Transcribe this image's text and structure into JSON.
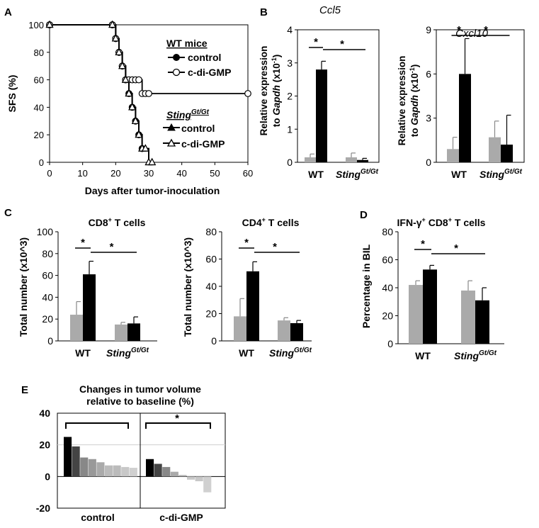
{
  "panels": {
    "a": "A",
    "b": "B",
    "c": "C",
    "d": "D",
    "e": "E"
  },
  "chart_data": [
    {
      "id": "A",
      "type": "line",
      "xlabel": "Days after tumor-inoculation",
      "ylabel": "SFS (%)",
      "xlim": [
        0,
        60
      ],
      "ylim": [
        0,
        100
      ],
      "xticks": [
        "0",
        "10",
        "20",
        "30",
        "40",
        "50",
        "60"
      ],
      "yticks": [
        "0",
        "20",
        "40",
        "60",
        "80",
        "100"
      ],
      "legend": {
        "group1_title": "WT mice",
        "group2_title_main": "Sting",
        "group2_title_sup": "Gt/Gt",
        "control": "control",
        "treated": "c-di-GMP"
      },
      "series": [
        {
          "name": "control",
          "group": "WT mice",
          "marker": "circle-filled",
          "x": [
            0,
            19,
            20,
            21,
            22,
            23,
            24,
            25,
            26,
            27,
            28
          ],
          "y": [
            100,
            100,
            90,
            80,
            70,
            60,
            50,
            40,
            30,
            20,
            10
          ]
        },
        {
          "name": "c-di-GMP",
          "group": "WT mice",
          "marker": "circle-open",
          "x": [
            0,
            19,
            20,
            21,
            22,
            23,
            24,
            25,
            26,
            27,
            28,
            29,
            30,
            60
          ],
          "y": [
            100,
            100,
            90,
            80,
            70,
            60,
            60,
            60,
            60,
            60,
            50,
            50,
            50,
            50
          ]
        },
        {
          "name": "control",
          "group": "Sting Gt/Gt",
          "marker": "triangle-filled",
          "x": [
            0,
            19,
            20,
            21,
            22,
            23,
            24,
            25,
            26,
            27,
            28,
            29,
            30,
            31
          ],
          "y": [
            100,
            100,
            90,
            80,
            70,
            60,
            50,
            40,
            30,
            20,
            10,
            10,
            0,
            0
          ]
        },
        {
          "name": "c-di-GMP",
          "group": "Sting Gt/Gt",
          "marker": "triangle-open",
          "x": [
            0,
            19,
            20,
            21,
            22,
            23,
            24,
            25,
            26,
            27,
            28,
            29,
            30,
            31
          ],
          "y": [
            100,
            100,
            90,
            80,
            70,
            60,
            50,
            40,
            30,
            20,
            10,
            10,
            0,
            0
          ]
        }
      ]
    },
    {
      "id": "B1",
      "type": "bar",
      "title": "Ccl5",
      "ylabel_main": "Relative expression",
      "ylabel_to": "to ",
      "ylabel_gene": "Gapdh",
      "ylabel_unit": " (x10",
      "ylabel_exp": "-1",
      "ylabel_close": ")",
      "ylim": [
        0,
        4
      ],
      "yticks": [
        "0",
        "1",
        "2",
        "3",
        "4"
      ],
      "categories": [
        {
          "main": "WT",
          "sup": ""
        },
        {
          "main": "Sting",
          "sup": "Gt/Gt"
        }
      ],
      "series": [
        {
          "name": "control",
          "color": "#aaaaaa",
          "values": [
            0.15,
            0.15
          ],
          "errors": [
            0.1,
            0.13
          ]
        },
        {
          "name": "c-di-GMP",
          "color": "#000000",
          "values": [
            2.8,
            0.07
          ],
          "errors": [
            0.25,
            0.05
          ]
        }
      ],
      "sig_marker": "*"
    },
    {
      "id": "B2",
      "type": "bar",
      "title": "Cxcl10",
      "ylabel_main": "Relative expression",
      "ylabel_to": "to ",
      "ylabel_gene": "Gapdh",
      "ylabel_unit": " (x10",
      "ylabel_exp": "-1",
      "ylabel_close": ")",
      "ylim": [
        0,
        9
      ],
      "yticks": [
        "0",
        "3",
        "6",
        "9"
      ],
      "categories": [
        {
          "main": "WT",
          "sup": ""
        },
        {
          "main": "Sting",
          "sup": "Gt/Gt"
        }
      ],
      "series": [
        {
          "name": "control",
          "color": "#aaaaaa",
          "values": [
            0.9,
            1.7
          ],
          "errors": [
            0.8,
            1.1
          ]
        },
        {
          "name": "c-di-GMP",
          "color": "#000000",
          "values": [
            6.0,
            1.2
          ],
          "errors": [
            2.4,
            2.0
          ]
        }
      ],
      "sig_marker": "*"
    },
    {
      "id": "C1",
      "type": "bar",
      "title_main": "CD8",
      "title_sup": "+",
      "title_rest": " T cells",
      "ylabel": "Total number (x10^3)",
      "ylim": [
        0,
        100
      ],
      "yticks": [
        "0",
        "20",
        "40",
        "60",
        "80",
        "100"
      ],
      "categories": [
        {
          "main": "WT",
          "sup": ""
        },
        {
          "main": "Sting",
          "sup": "Gt/Gt"
        }
      ],
      "series": [
        {
          "name": "control",
          "color": "#aaaaaa",
          "values": [
            24,
            15
          ],
          "errors": [
            12,
            2
          ]
        },
        {
          "name": "c-di-GMP",
          "color": "#000000",
          "values": [
            61,
            16
          ],
          "errors": [
            12,
            6
          ]
        }
      ],
      "sig_marker": "*"
    },
    {
      "id": "C2",
      "type": "bar",
      "title_main": "CD4",
      "title_sup": "+",
      "title_rest": " T cells",
      "ylabel": "Total number (x10^3)",
      "ylim": [
        0,
        80
      ],
      "yticks": [
        "0",
        "20",
        "40",
        "60",
        "80"
      ],
      "categories": [
        {
          "main": "WT",
          "sup": ""
        },
        {
          "main": "Sting",
          "sup": "Gt/Gt"
        }
      ],
      "series": [
        {
          "name": "control",
          "color": "#aaaaaa",
          "values": [
            18,
            15
          ],
          "errors": [
            13,
            2
          ]
        },
        {
          "name": "c-di-GMP",
          "color": "#000000",
          "values": [
            51,
            13
          ],
          "errors": [
            7,
            2
          ]
        }
      ],
      "sig_marker": "*"
    },
    {
      "id": "D",
      "type": "bar",
      "title_main": "IFN-γ",
      "title_sup": "+",
      "title_mid": " CD8",
      "title_sup2": "+",
      "title_rest": " T cells",
      "ylabel": "Percentage in BIL",
      "ylim": [
        0,
        80
      ],
      "yticks": [
        "0",
        "20",
        "40",
        "60",
        "80"
      ],
      "categories": [
        {
          "main": "WT",
          "sup": ""
        },
        {
          "main": "Sting",
          "sup": "Gt/Gt"
        }
      ],
      "series": [
        {
          "name": "control",
          "color": "#aaaaaa",
          "values": [
            42,
            38
          ],
          "errors": [
            3,
            7
          ]
        },
        {
          "name": "c-di-GMP",
          "color": "#000000",
          "values": [
            53,
            31
          ],
          "errors": [
            3,
            9
          ]
        }
      ],
      "sig_marker": "*"
    },
    {
      "id": "E",
      "type": "bar",
      "title_line1": "Changes in tumor volume",
      "title_line2": "relative to baseline (%)",
      "ylim": [
        -20,
        40
      ],
      "yticks": [
        "-20",
        "0",
        "20",
        "40"
      ],
      "groups": [
        {
          "label": "control",
          "values": [
            25,
            19,
            12,
            11,
            9,
            7,
            7,
            6,
            5.5
          ],
          "colors": [
            "#000000",
            "#444444",
            "#888888",
            "#999999",
            "#aaaaaa",
            "#bbbbbb",
            "#bbbbbb",
            "#c8c8c8",
            "#d0d0d0"
          ]
        },
        {
          "label": "c-di-GMP",
          "values": [
            11,
            8,
            6,
            3,
            1,
            -2,
            -3,
            -10
          ],
          "colors": [
            "#000000",
            "#444444",
            "#888888",
            "#aaaaaa",
            "#bbbbbb",
            "#c8c8c8",
            "#c8c8c8",
            "#d0d0d0"
          ]
        }
      ],
      "sig_marker": "*"
    }
  ]
}
